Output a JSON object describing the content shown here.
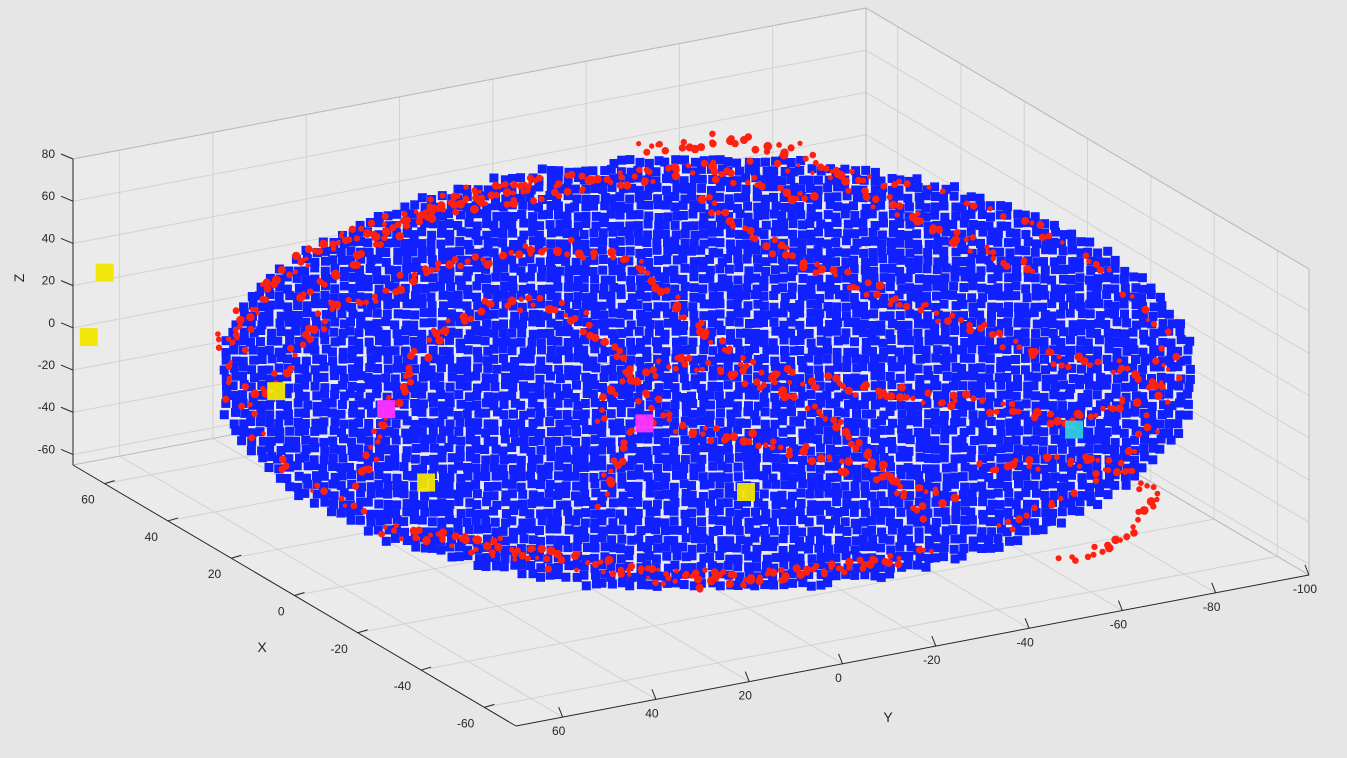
{
  "figure": {
    "background": "#e6e6e6",
    "axes_background": "#ebebeb"
  },
  "chart_data": {
    "type": "scatter3d",
    "title": "",
    "xlabel": "X",
    "ylabel": "Y",
    "zlabel": "Z",
    "xlim": [
      -70,
      70
    ],
    "ylim": [
      -100,
      70
    ],
    "zlim": [
      -65,
      80
    ],
    "grid": true,
    "legend": "none",
    "x_ticks": [
      "60",
      "40",
      "20",
      "0",
      "-20",
      "-40",
      "-60"
    ],
    "y_ticks": [
      "60",
      "40",
      "20",
      "0",
      "-20",
      "-40",
      "-60",
      "-80",
      "-100"
    ],
    "z_ticks": [
      "80",
      "60",
      "40",
      "20",
      "0",
      "-20",
      "-40",
      "-60"
    ],
    "series": [
      {
        "color": "#1020ff",
        "description": "dense point cloud forming a brain-like dome",
        "marker": "point"
      },
      {
        "color": "#ff2010",
        "description": "ridge points along curved folds",
        "marker": "dot"
      },
      {
        "color": "#ff33ff",
        "marker": "square",
        "points": [
          [
            30,
            30,
            -20
          ],
          [
            0,
            -5,
            -15
          ]
        ]
      },
      {
        "color": "#f2e600",
        "marker": "square",
        "points": [
          [
            50,
            40,
            -25
          ],
          [
            10,
            35,
            -35
          ],
          [
            -10,
            -20,
            -45
          ],
          [
            60,
            70,
            35
          ],
          [
            65,
            70,
            0
          ]
        ]
      },
      {
        "color": "#33ccdd",
        "marker": "square",
        "points": [
          [
            -40,
            -70,
            -10
          ]
        ]
      }
    ]
  }
}
